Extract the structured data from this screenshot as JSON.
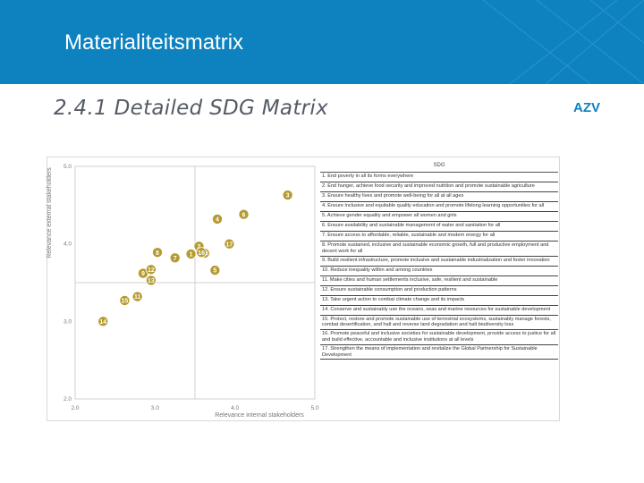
{
  "header": {
    "title": "Materialiteitsmatrix"
  },
  "subtitle": "2.4.1 Detailed SDG Matrix",
  "brand": "AZV",
  "colors": {
    "banner": "#0d82bf",
    "point": "#b59a2f",
    "brand": "#0d82bf"
  },
  "chart_data": {
    "type": "scatter",
    "xlabel": "Relevance internal stakeholders",
    "ylabel": "Relevance external stakeholders",
    "xlim": [
      2.0,
      5.0
    ],
    "ylim": [
      2.0,
      5.0
    ],
    "xticks": [
      "2.0",
      "3.0",
      "4.0",
      "5.0"
    ],
    "yticks": [
      "2.0",
      "3.0",
      "4.0",
      "5.0"
    ],
    "grid": "center-lines",
    "points": [
      {
        "label": "1",
        "x": 3.45,
        "y": 3.87
      },
      {
        "label": "2",
        "x": 3.55,
        "y": 3.97
      },
      {
        "label": "3",
        "x": 4.66,
        "y": 4.63
      },
      {
        "label": "4",
        "x": 3.78,
        "y": 4.32
      },
      {
        "label": "5",
        "x": 3.75,
        "y": 3.66
      },
      {
        "label": "6",
        "x": 4.11,
        "y": 4.38
      },
      {
        "label": "7",
        "x": 3.25,
        "y": 3.82
      },
      {
        "label": "8",
        "x": 3.03,
        "y": 3.89
      },
      {
        "label": "9",
        "x": 2.85,
        "y": 3.62
      },
      {
        "label": "10",
        "x": 3.62,
        "y": 3.88
      },
      {
        "label": "11",
        "x": 2.78,
        "y": 3.32
      },
      {
        "label": "12",
        "x": 2.95,
        "y": 3.67
      },
      {
        "label": "13",
        "x": 2.95,
        "y": 3.53
      },
      {
        "label": "14",
        "x": 2.35,
        "y": 3.0
      },
      {
        "label": "15",
        "x": 2.62,
        "y": 3.27
      },
      {
        "label": "16",
        "x": 3.58,
        "y": 3.89
      },
      {
        "label": "17",
        "x": 3.93,
        "y": 4.0
      }
    ],
    "legend_title": "SDG",
    "legend": [
      "1. End poverty in all its forms everywhere",
      "2. End hunger, achieve food security and improved nutrition and promote sustainable agriculture",
      "3. Ensure healthy lives and promote well-being for all at all ages",
      "4. Ensure inclusive and equitable quality education and promote lifelong learning opportunities for all",
      "5. Achieve gender equality and empower all women and girls",
      "6. Ensure availability and sustainable management of water and sanitation for all",
      "7. Ensure access to affordable, reliable, sustainable and modern energy for all",
      "8. Promote sustained, inclusive and sustainable economic growth, full and productive employment and decent work for all",
      "9. Build resilient infrastructure, promote inclusive and sustainable industrialization and foster innovation",
      "10. Reduce inequality within and among countries",
      "11. Make cities and human settlements inclusive, safe, resilient and sustainable",
      "12. Ensure sustainable consumption and production patterns",
      "13. Take urgent action to combat climate change and its impacts",
      "14. Conserve and sustainably use the oceans, seas and marine resources for sustainable development",
      "15. Protect, restore and promote sustainable use of terrestrial ecosystems, sustainably manage forests, combat desertification, and halt and reverse land degradation and halt biodiversity loss",
      "16. Promote peaceful and inclusive societies for sustainable development, provide access to justice for all and build effective, accountable and inclusive institutions at all levels",
      "17. Strengthen the means of implementation and revitalize the Global Partnership for Sustainable Development"
    ]
  }
}
